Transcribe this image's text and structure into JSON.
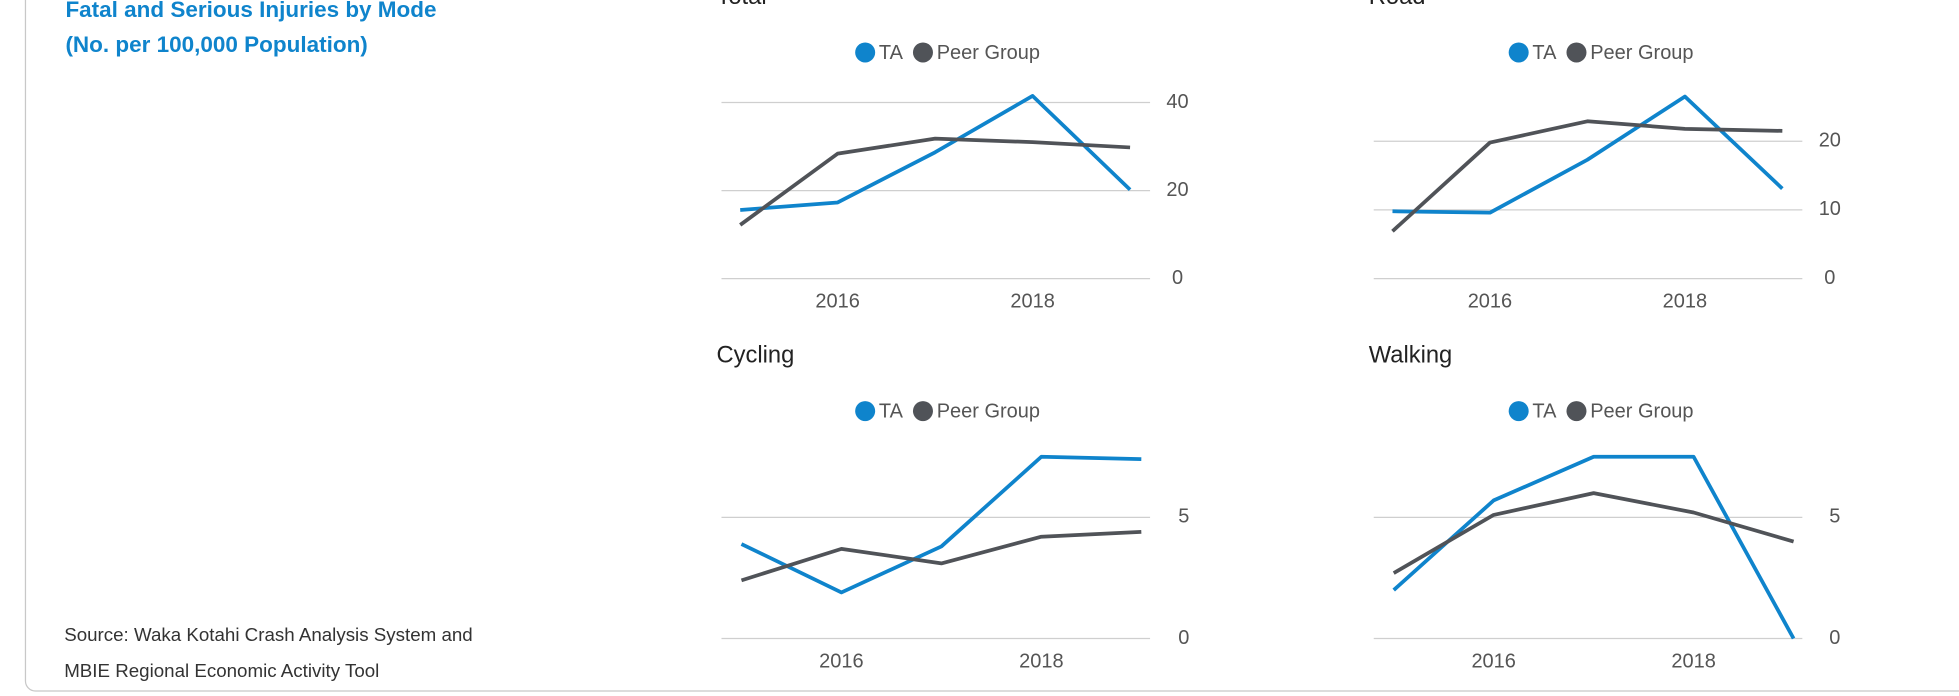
{
  "panel": {
    "title_lines": [
      "Fatal and Serious Injuries by Mode",
      "(No. per 100,000 Population)"
    ],
    "source_lines": [
      "Source: Waka Kotahi Crash Analysis System and",
      "MBIE Regional Economic Activity Tool"
    ]
  },
  "chart_data": [
    {
      "type": "line",
      "title": "Total",
      "x": [
        2015,
        2016,
        2017,
        2018,
        2019
      ],
      "xlim": [
        2015,
        2019
      ],
      "xticks": [
        2016,
        2018
      ],
      "ylim": [
        0,
        42
      ],
      "yticks": [
        0,
        20,
        40
      ],
      "grid": true,
      "series": [
        {
          "name": "TA",
          "color": "#0f84cc",
          "values": [
            15.6,
            17.3,
            28.7,
            41.5,
            20.2
          ]
        },
        {
          "name": "Peer Group",
          "color": "#505358",
          "values": [
            12.2,
            28.4,
            31.8,
            31.0,
            29.8
          ]
        }
      ]
    },
    {
      "type": "line",
      "title": "Road",
      "x": [
        2015,
        2016,
        2017,
        2018,
        2019
      ],
      "xlim": [
        2015,
        2019
      ],
      "xticks": [
        2016,
        2018
      ],
      "ylim": [
        0,
        27
      ],
      "yticks": [
        0,
        10,
        20
      ],
      "grid": true,
      "series": [
        {
          "name": "TA",
          "color": "#0f84cc",
          "values": [
            9.8,
            9.6,
            17.3,
            26.5,
            13.1
          ]
        },
        {
          "name": "Peer Group",
          "color": "#505358",
          "values": [
            6.9,
            19.8,
            22.9,
            21.8,
            21.5
          ]
        }
      ]
    },
    {
      "type": "line",
      "title": "Cycling",
      "x": [
        2015,
        2016,
        2017,
        2018,
        2019
      ],
      "xlim": [
        2015,
        2019
      ],
      "xticks": [
        2016,
        2018
      ],
      "ylim": [
        0,
        7.6
      ],
      "yticks": [
        0,
        5
      ],
      "grid": true,
      "series": [
        {
          "name": "TA",
          "color": "#0f84cc",
          "values": [
            3.9,
            1.9,
            3.8,
            7.5,
            7.4
          ]
        },
        {
          "name": "Peer Group",
          "color": "#505358",
          "values": [
            2.4,
            3.7,
            3.1,
            4.2,
            4.4
          ]
        }
      ]
    },
    {
      "type": "line",
      "title": "Walking",
      "x": [
        2015,
        2016,
        2017,
        2018,
        2019
      ],
      "xlim": [
        2015,
        2019
      ],
      "xticks": [
        2016,
        2018
      ],
      "ylim": [
        0,
        7.6
      ],
      "yticks": [
        0,
        5
      ],
      "grid": true,
      "series": [
        {
          "name": "TA",
          "color": "#0f84cc",
          "values": [
            2.0,
            5.7,
            7.5,
            7.5,
            0
          ]
        },
        {
          "name": "Peer Group",
          "color": "#505358",
          "values": [
            2.7,
            5.1,
            6.0,
            5.2,
            4.0
          ]
        }
      ]
    }
  ]
}
